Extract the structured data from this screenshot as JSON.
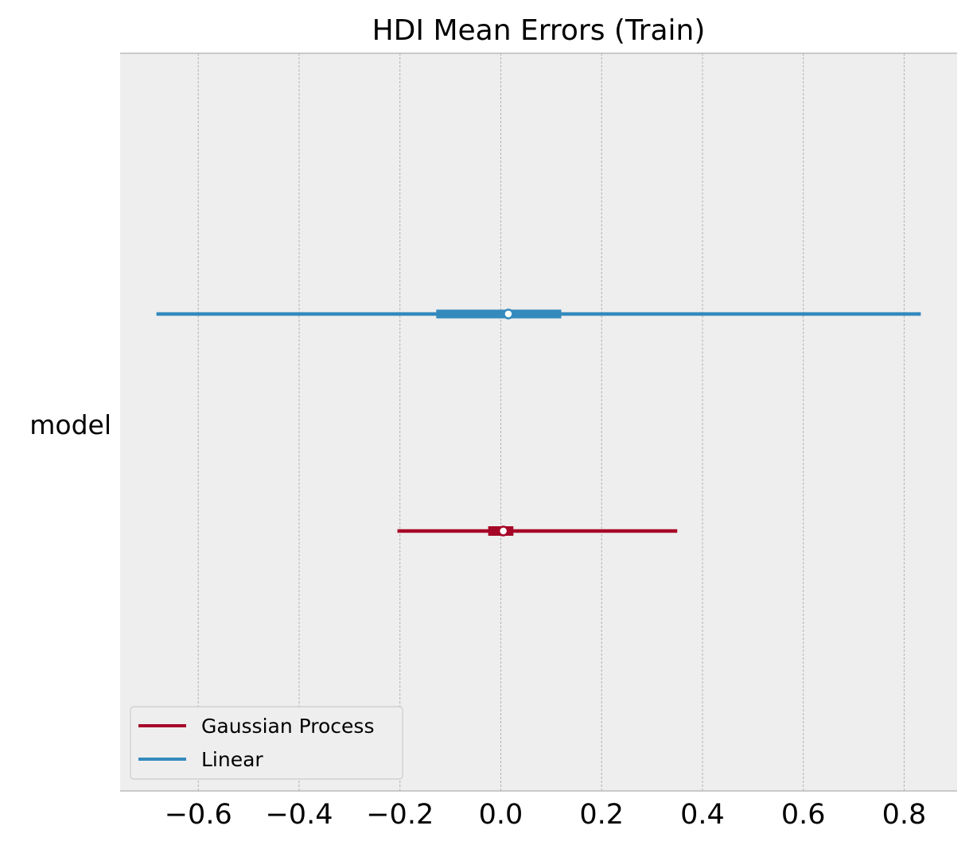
{
  "chart_data": {
    "type": "forest",
    "title": "HDI Mean Errors (Train)",
    "ylabel": "model",
    "xlabel": "",
    "xlim": [
      -0.755,
      0.905
    ],
    "xticks": [
      -0.6,
      -0.4,
      -0.2,
      0.0,
      0.2,
      0.4,
      0.6,
      0.8
    ],
    "xtick_labels": [
      "−0.6",
      "−0.4",
      "−0.2",
      "0.0",
      "0.2",
      "0.4",
      "0.6",
      "0.8"
    ],
    "grid": "x",
    "legend_placement": "lower-left",
    "series": [
      {
        "name": "Gaussian Process",
        "color": "#A60628",
        "hdi_low": -0.205,
        "hdi_high": 0.35,
        "iqr_low": -0.025,
        "iqr_high": 0.025,
        "mean": 0.005
      },
      {
        "name": "Linear",
        "color": "#348ABD",
        "hdi_low": -0.683,
        "hdi_high": 0.833,
        "iqr_low": -0.128,
        "iqr_high": 0.12,
        "mean": 0.015
      }
    ]
  }
}
